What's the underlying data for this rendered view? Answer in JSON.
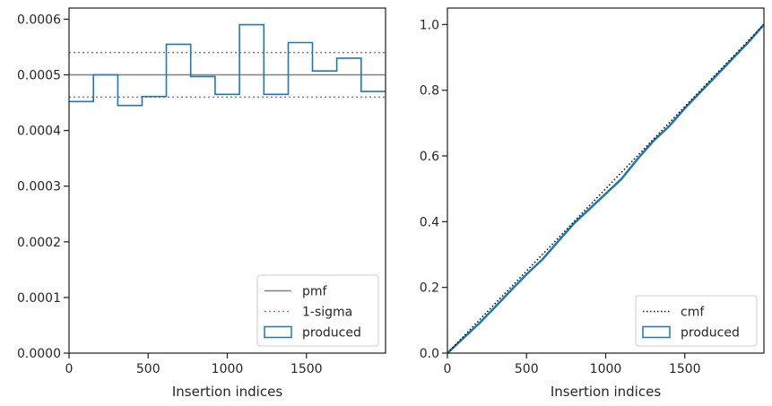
{
  "chart_data": [
    {
      "type": "line",
      "xlabel": "Insertion indices",
      "ylabel": "",
      "xlim": [
        0,
        2000
      ],
      "ylim": [
        0,
        0.00062
      ],
      "x_ticks": [
        0,
        500,
        1000,
        1500
      ],
      "x_tick_labels": [
        "0",
        "500",
        "1000",
        "1500"
      ],
      "y_ticks": [
        0,
        0.0001,
        0.0002,
        0.0003,
        0.0004,
        0.0005,
        0.0006
      ],
      "y_tick_labels": [
        "0.0000",
        "0.0001",
        "0.0002",
        "0.0003",
        "0.0004",
        "0.0005",
        "0.0006"
      ],
      "grid": false,
      "legend_position": "lower-right",
      "pmf": {
        "name": "pmf",
        "value": 0.0005,
        "color": "#808080"
      },
      "sigma": {
        "name": "1-sigma",
        "lower": 0.00046,
        "upper": 0.00054,
        "color": "#808080"
      },
      "produced": {
        "name": "produced",
        "color": "#1f77b4",
        "bin_edges": [
          0,
          154,
          308,
          462,
          615,
          769,
          923,
          1077,
          1231,
          1385,
          1538,
          1692,
          1846,
          2000
        ],
        "values": [
          0.000452,
          0.0005,
          0.000445,
          0.000461,
          0.000555,
          0.000497,
          0.000465,
          0.00059,
          0.000465,
          0.000558,
          0.000507,
          0.00053,
          0.00047
        ]
      }
    },
    {
      "type": "line",
      "xlabel": "Insertion indices",
      "ylabel": "",
      "xlim": [
        0,
        2000
      ],
      "ylim": [
        0,
        1.05
      ],
      "x_ticks": [
        0,
        500,
        1000,
        1500
      ],
      "x_tick_labels": [
        "0",
        "500",
        "1000",
        "1500"
      ],
      "y_ticks": [
        0,
        0.2,
        0.4,
        0.6,
        0.8,
        1.0
      ],
      "y_tick_labels": [
        "0.0",
        "0.2",
        "0.4",
        "0.6",
        "0.8",
        "1.0"
      ],
      "grid": false,
      "legend_position": "lower-right",
      "cmf": {
        "name": "cmf",
        "x": [
          0,
          2000
        ],
        "y": [
          0,
          1.0
        ],
        "color": "#000000"
      },
      "produced": {
        "name": "produced",
        "color": "#1f77b4",
        "x": [
          0,
          100,
          200,
          300,
          400,
          500,
          600,
          700,
          800,
          900,
          1000,
          1100,
          1200,
          1300,
          1400,
          1500,
          1600,
          1700,
          1800,
          1900,
          2000
        ],
        "y": [
          0,
          0.045,
          0.09,
          0.14,
          0.19,
          0.24,
          0.285,
          0.34,
          0.395,
          0.44,
          0.485,
          0.53,
          0.59,
          0.645,
          0.69,
          0.745,
          0.795,
          0.845,
          0.895,
          0.945,
          1.0
        ]
      }
    }
  ]
}
